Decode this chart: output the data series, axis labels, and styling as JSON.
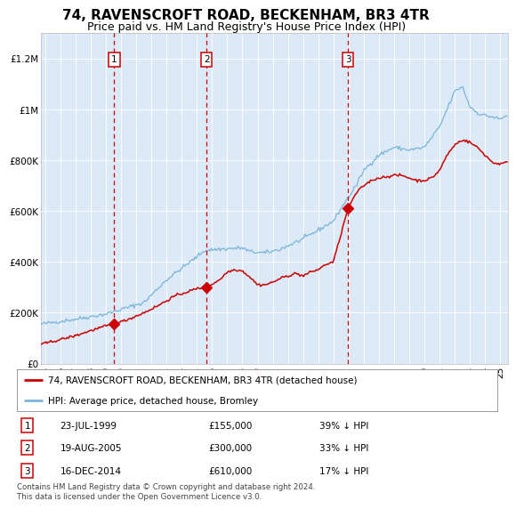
{
  "title": "74, RAVENSCROFT ROAD, BECKENHAM, BR3 4TR",
  "subtitle": "Price paid vs. HM Land Registry's House Price Index (HPI)",
  "title_fontsize": 11,
  "subtitle_fontsize": 9,
  "bg_color": "#dce9f7",
  "hpi_color": "#7ab4d8",
  "price_color": "#cc0000",
  "vline_color": "#cc0000",
  "ylim": [
    0,
    1300000
  ],
  "xlim_start": 1994.7,
  "xlim_end": 2025.5,
  "sale_dates": [
    1999.55,
    2005.63,
    2014.96
  ],
  "sale_prices": [
    155000,
    300000,
    610000
  ],
  "sale_labels": [
    "1",
    "2",
    "3"
  ],
  "sale_annotations": [
    {
      "label": "1",
      "date": "23-JUL-1999",
      "price": "£155,000",
      "pct": "39% ↓ HPI"
    },
    {
      "label": "2",
      "date": "19-AUG-2005",
      "price": "£300,000",
      "pct": "33% ↓ HPI"
    },
    {
      "label": "3",
      "date": "16-DEC-2014",
      "price": "£610,000",
      "pct": "17% ↓ HPI"
    }
  ],
  "legend_line1": "74, RAVENSCROFT ROAD, BECKENHAM, BR3 4TR (detached house)",
  "legend_line2": "HPI: Average price, detached house, Bromley",
  "legend_color1": "#cc0000",
  "legend_color2": "#7ab4d8",
  "footer": "Contains HM Land Registry data © Crown copyright and database right 2024.\nThis data is licensed under the Open Government Licence v3.0.",
  "yticks": [
    0,
    200000,
    400000,
    600000,
    800000,
    1000000,
    1200000
  ],
  "ytick_labels": [
    "£0",
    "£200K",
    "£400K",
    "£600K",
    "£800K",
    "£1M",
    "£1.2M"
  ],
  "xticks": [
    1995,
    1996,
    1997,
    1998,
    1999,
    2000,
    2001,
    2002,
    2003,
    2004,
    2005,
    2006,
    2007,
    2008,
    2009,
    2010,
    2011,
    2012,
    2013,
    2014,
    2015,
    2016,
    2017,
    2018,
    2019,
    2020,
    2021,
    2022,
    2023,
    2024,
    2025
  ]
}
